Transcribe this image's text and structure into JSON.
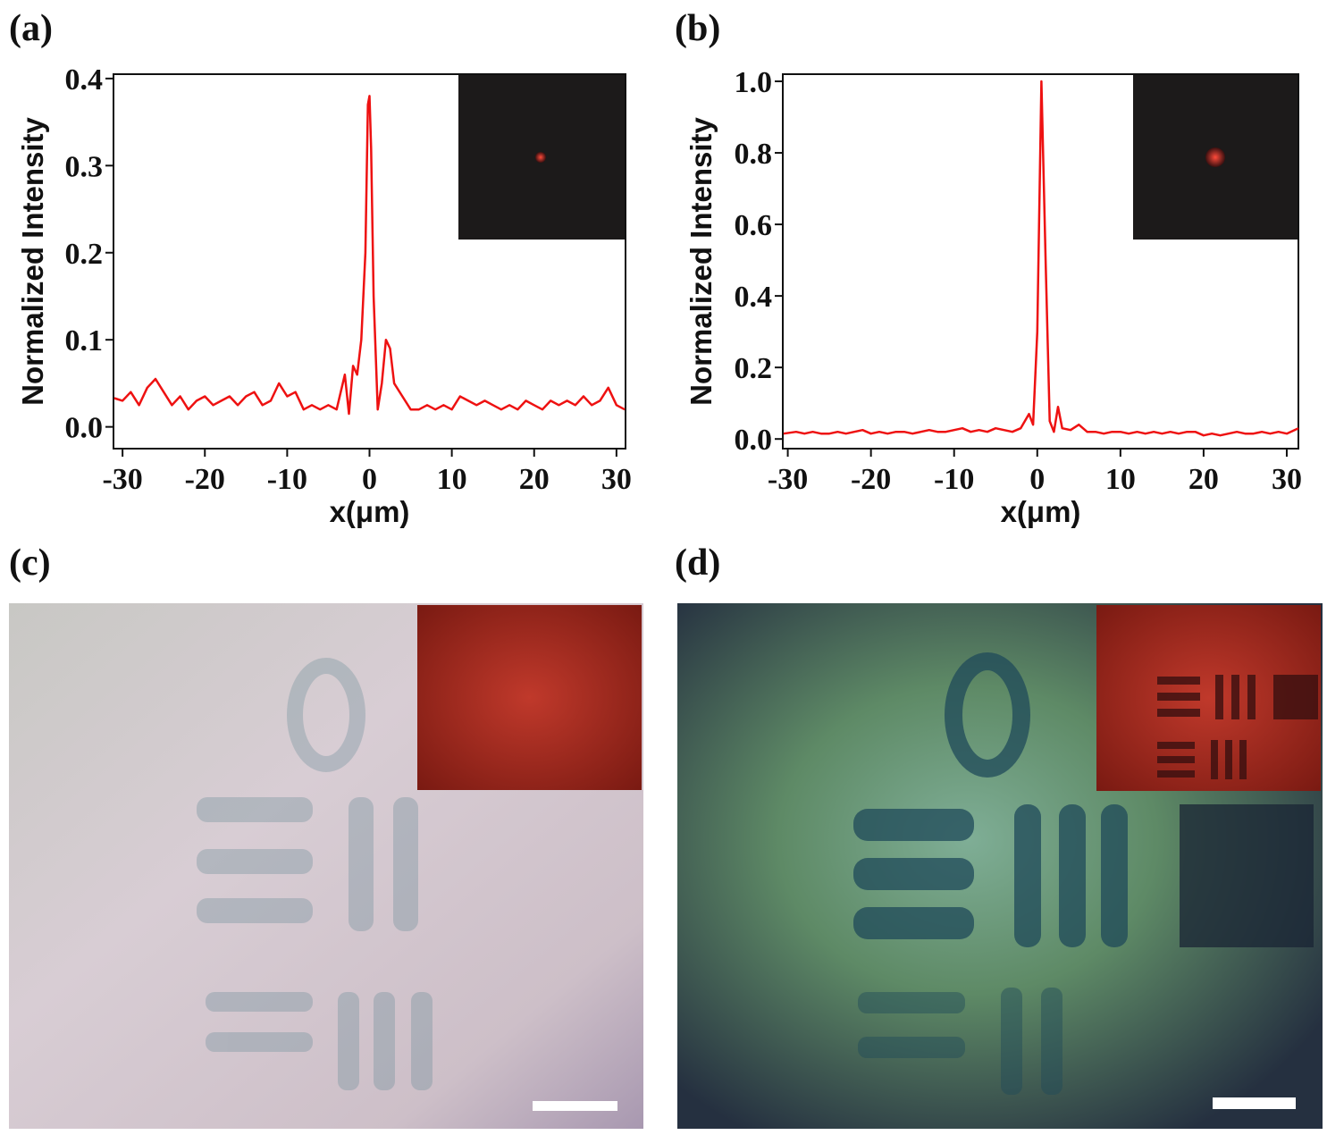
{
  "chart_data": [
    {
      "type": "line",
      "panel_label": "(a)",
      "x_label": "x(μm)",
      "y_label": "Normalized Intensity",
      "xlim": [
        -31.1,
        31.1
      ],
      "xticks": [
        -30,
        -20,
        -10,
        0,
        10,
        20,
        30
      ],
      "ylim": [
        -0.025,
        0.405
      ],
      "yticks": [
        {
          "value": 0,
          "label": "0.0"
        },
        0.1,
        0.2,
        0.3,
        0.4
      ],
      "x": [
        -31,
        -30,
        -29,
        -28,
        -27,
        -26,
        -25,
        -24,
        -23,
        -22,
        -21,
        -20,
        -19,
        -18,
        -17,
        -16,
        -15,
        -14,
        -13,
        -12,
        -11,
        -10,
        -9,
        -8,
        -7,
        -6,
        -5,
        -4,
        -3,
        -2.5,
        -2,
        -1.5,
        -1,
        -0.5,
        -0.2,
        0,
        0.2,
        0.5,
        1,
        1.5,
        2,
        2.5,
        3,
        4,
        5,
        6,
        7,
        8,
        9,
        10,
        11,
        12,
        13,
        14,
        15,
        16,
        17,
        18,
        19,
        20,
        21,
        22,
        23,
        24,
        25,
        26,
        27,
        28,
        29,
        30,
        31
      ],
      "series": [
        {
          "color": "#ee1111",
          "values": [
            0.033,
            0.03,
            0.04,
            0.025,
            0.045,
            0.055,
            0.04,
            0.025,
            0.035,
            0.02,
            0.03,
            0.035,
            0.025,
            0.03,
            0.035,
            0.025,
            0.035,
            0.04,
            0.025,
            0.03,
            0.05,
            0.035,
            0.04,
            0.02,
            0.025,
            0.02,
            0.025,
            0.02,
            0.06,
            0.015,
            0.07,
            0.06,
            0.1,
            0.2,
            0.37,
            0.38,
            0.32,
            0.15,
            0.02,
            0.05,
            0.1,
            0.09,
            0.05,
            0.035,
            0.02,
            0.02,
            0.025,
            0.02,
            0.025,
            0.02,
            0.035,
            0.03,
            0.025,
            0.03,
            0.025,
            0.02,
            0.025,
            0.02,
            0.03,
            0.025,
            0.02,
            0.03,
            0.025,
            0.03,
            0.025,
            0.035,
            0.025,
            0.03,
            0.045,
            0.025,
            0.02
          ]
        }
      ]
    },
    {
      "type": "line",
      "panel_label": "(b)",
      "x_label": "x(μm)",
      "y_label": "Normalized Intensity",
      "xlim": [
        -30.6,
        31.4
      ],
      "xticks": [
        -30,
        -20,
        -10,
        0,
        10,
        20,
        30
      ],
      "ylim": [
        -0.027,
        1.02
      ],
      "yticks": [
        {
          "value": 0,
          "label": "0.0"
        },
        0.2,
        0.4,
        0.6,
        0.8,
        {
          "value": 1,
          "label": "1.0"
        }
      ],
      "x": [
        -30.5,
        -29,
        -28,
        -27,
        -26,
        -25,
        -24,
        -23,
        -22,
        -21,
        -20,
        -19,
        -18,
        -17,
        -16,
        -15,
        -14,
        -13,
        -12,
        -11,
        -10,
        -9,
        -8,
        -7,
        -6,
        -5,
        -4,
        -3,
        -2,
        -1,
        -0.5,
        0,
        0.5,
        1,
        1.5,
        2,
        2.5,
        3,
        4,
        5,
        6,
        7,
        8,
        9,
        10,
        11,
        12,
        13,
        14,
        15,
        16,
        17,
        18,
        19,
        20,
        21,
        22,
        23,
        24,
        25,
        26,
        27,
        28,
        29,
        30,
        31.4
      ],
      "series": [
        {
          "color": "#ee1111",
          "values": [
            0.015,
            0.02,
            0.015,
            0.02,
            0.015,
            0.015,
            0.02,
            0.015,
            0.02,
            0.025,
            0.015,
            0.02,
            0.015,
            0.02,
            0.02,
            0.015,
            0.02,
            0.025,
            0.02,
            0.02,
            0.025,
            0.03,
            0.02,
            0.025,
            0.02,
            0.03,
            0.025,
            0.02,
            0.03,
            0.07,
            0.04,
            0.3,
            1.0,
            0.5,
            0.05,
            0.02,
            0.09,
            0.03,
            0.025,
            0.04,
            0.02,
            0.02,
            0.015,
            0.02,
            0.02,
            0.015,
            0.02,
            0.015,
            0.02,
            0.015,
            0.02,
            0.015,
            0.02,
            0.02,
            0.01,
            0.015,
            0.01,
            0.015,
            0.02,
            0.015,
            0.015,
            0.02,
            0.015,
            0.02,
            0.015,
            0.03
          ]
        }
      ]
    }
  ],
  "images": [
    {
      "label": "(c)"
    },
    {
      "label": "(d)"
    }
  ]
}
